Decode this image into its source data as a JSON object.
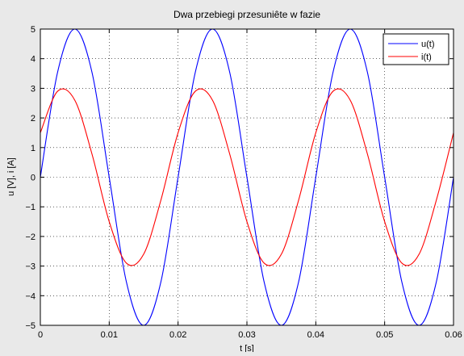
{
  "chart_data": {
    "type": "line",
    "title": "Dwa przebiegi przesuniête w fazie",
    "xlabel": "t [s]",
    "ylabel": "u [V], i [A]",
    "xlim": [
      0,
      0.06
    ],
    "ylim": [
      -5,
      5
    ],
    "x_ticks": [
      0,
      0.01,
      0.02,
      0.03,
      0.04,
      0.05,
      0.06
    ],
    "x_tick_labels": [
      "0",
      "0.01",
      "0.02",
      "0.03",
      "0.04",
      "0.05",
      "0.06"
    ],
    "y_ticks": [
      -5,
      -4,
      -3,
      -2,
      -1,
      0,
      1,
      2,
      3,
      4,
      5
    ],
    "y_tick_labels": [
      "−5",
      "−4",
      "−3",
      "−2",
      "−1",
      "0",
      "1",
      "2",
      "3",
      "4",
      "5"
    ],
    "grid": true,
    "legend_position": "top-right",
    "series": [
      {
        "name": "u(t)",
        "color": "#0000ff",
        "x": [
          0,
          0.0025,
          0.005,
          0.0075,
          0.01,
          0.0125,
          0.015,
          0.0175,
          0.02,
          0.0225,
          0.025,
          0.0275,
          0.03,
          0.0325,
          0.035,
          0.0375,
          0.04,
          0.0425,
          0.045,
          0.0475,
          0.05,
          0.0525,
          0.055,
          0.0575,
          0.06
        ],
        "y": [
          0,
          3.54,
          5,
          3.54,
          0,
          -3.54,
          -5,
          -3.54,
          0,
          3.54,
          5,
          3.54,
          0,
          -3.54,
          -5,
          -3.54,
          0,
          3.54,
          5,
          3.54,
          0,
          -3.54,
          -5,
          -3.54,
          0
        ]
      },
      {
        "name": "i(t)",
        "color": "#ff0000",
        "x": [
          0,
          0.0025,
          0.005,
          0.0075,
          0.01,
          0.0125,
          0.015,
          0.0175,
          0.02,
          0.0225,
          0.025,
          0.0275,
          0.03,
          0.0325,
          0.035,
          0.0375,
          0.04,
          0.0425,
          0.045,
          0.0475,
          0.05,
          0.0525,
          0.055,
          0.0575,
          0.06
        ],
        "y": [
          1.5,
          2.9,
          2.6,
          0.78,
          -1.5,
          -2.9,
          -2.6,
          -0.78,
          1.5,
          2.9,
          2.6,
          0.78,
          -1.5,
          -2.9,
          -2.6,
          -0.78,
          1.5,
          2.9,
          2.6,
          0.78,
          -1.5,
          -2.9,
          -2.6,
          -0.78,
          1.5
        ]
      }
    ]
  }
}
